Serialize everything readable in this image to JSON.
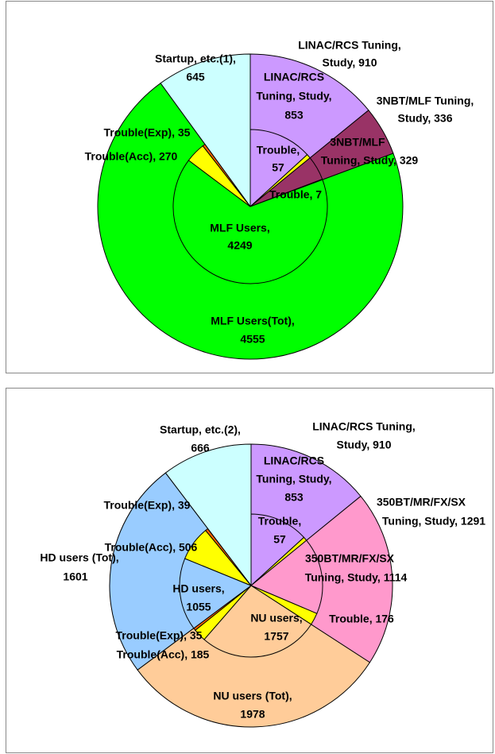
{
  "chart_data": [
    {
      "type": "pie",
      "outer": {
        "labels": [
          [
            "LINAC/RCS Tuning,",
            "Study, 910"
          ],
          [
            "3NBT/MLF Tuning,",
            "Study, 336"
          ],
          [
            "MLF Users(Tot),",
            "4555"
          ],
          [
            "Startup, etc.(1),",
            "645"
          ]
        ],
        "values": [
          910,
          336,
          4555,
          645
        ],
        "colors": [
          "#cc99ff",
          "#993366",
          "#00ff00",
          "#ccffff"
        ]
      },
      "inner": {
        "labels": [
          [
            "LINAC/RCS",
            "Tuning, Study,",
            "853"
          ],
          [
            "Trouble,",
            "57"
          ],
          [
            "3NBT/MLF",
            "Tuning, Study, 329"
          ],
          [
            "Trouble, 7"
          ],
          [
            "MLF Users,",
            "4249"
          ],
          [
            "Trouble(Acc), 270"
          ],
          [
            "Trouble(Exp), 35"
          ]
        ],
        "values": [
          853,
          57,
          329,
          7,
          4249,
          270,
          35
        ],
        "colors": [
          "#cc99ff",
          "#ffff00",
          "#993366",
          "#ffff00",
          "#00ff00",
          "#ffff00",
          "#ff6600"
        ]
      }
    },
    {
      "type": "pie",
      "outer": {
        "labels": [
          [
            "LINAC/RCS Tuning,",
            "Study, 910"
          ],
          [
            "350BT/MR/FX/SX",
            "Tuning, Study, 1291"
          ],
          [
            "NU users (Tot),",
            "1978"
          ],
          [
            "HD users (Tot),",
            "1601"
          ],
          [
            "Startup, etc.(2),",
            "666"
          ]
        ],
        "values": [
          910,
          1291,
          1978,
          1601,
          666
        ],
        "colors": [
          "#cc99ff",
          "#ff99cc",
          "#ffcc99",
          "#99ccff",
          "#ccffff"
        ]
      },
      "inner": {
        "labels": [
          [
            "LINAC/RCS",
            "Tuning, Study,",
            "853"
          ],
          [
            "Trouble,",
            "57"
          ],
          [
            "350BT/MR/FX/SX",
            "Tuning, Study, 1114"
          ],
          [
            "Trouble, 176"
          ],
          [
            "NU users,",
            "1757"
          ],
          [
            "Trouble(Acc), 185"
          ],
          [
            "Trouble(Exp), 35"
          ],
          [
            "HD users,",
            "1055"
          ],
          [
            "Trouble(Acc), 506"
          ],
          [
            "Trouble(Exp), 39"
          ]
        ],
        "values": [
          853,
          57,
          1114,
          176,
          1757,
          185,
          35,
          1055,
          506,
          39
        ],
        "colors": [
          "#cc99ff",
          "#ffff00",
          "#ff99cc",
          "#ffff00",
          "#ffcc99",
          "#ffff00",
          "#ff6600",
          "#99ccff",
          "#ffff00",
          "#ff6600"
        ]
      }
    }
  ]
}
